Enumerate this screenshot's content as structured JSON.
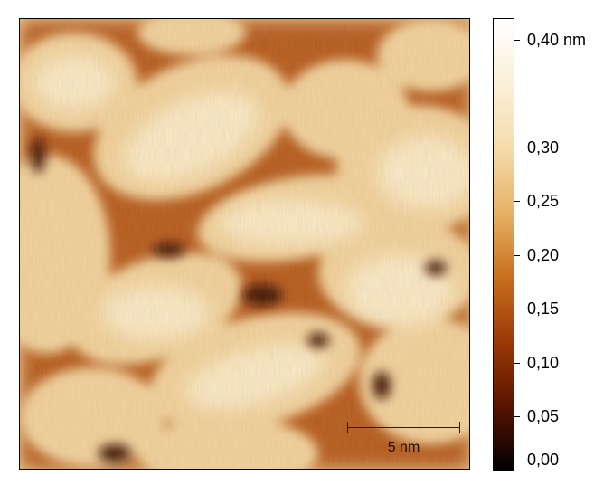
{
  "scalebar": {
    "label": "5 nm"
  },
  "colorbar": {
    "unit_label": "0,40 nm",
    "max": 0.42,
    "ticks": [
      {
        "value": 0.4,
        "label": "0,40 nm"
      },
      {
        "value": 0.3,
        "label": "0,30"
      },
      {
        "value": 0.25,
        "label": "0,25"
      },
      {
        "value": 0.2,
        "label": "0,20"
      },
      {
        "value": 0.15,
        "label": "0,15"
      },
      {
        "value": 0.1,
        "label": "0,10"
      },
      {
        "value": 0.05,
        "label": "0,05"
      },
      {
        "value": 0.0,
        "label": "0,00"
      }
    ],
    "colors": [
      "#000000",
      "#5a1400",
      "#9c3a06",
      "#c8701e",
      "#e7b265",
      "#f6dcab",
      "#fbf0d8",
      "#ffffff"
    ]
  },
  "palette": {
    "background": "#f4dcaa",
    "valley": "#8a3204",
    "deep": "#3a0c00",
    "highlight": "#fff6e4"
  }
}
